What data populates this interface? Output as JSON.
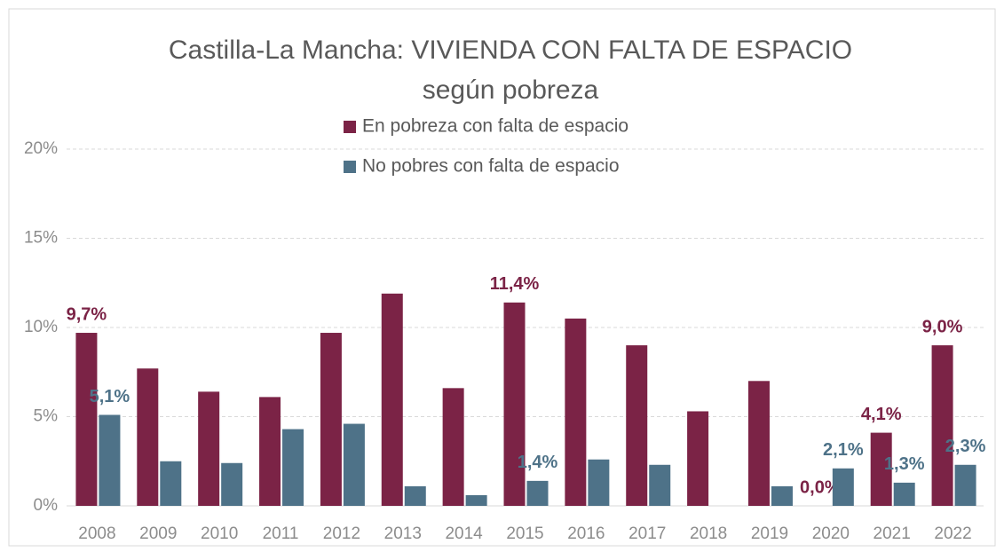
{
  "chart_data": {
    "type": "bar",
    "title": "Castilla-La Mancha: VIVIENDA CON FALTA DE ESPACIO",
    "subtitle": "según pobreza",
    "categories": [
      "2008",
      "2009",
      "2010",
      "2011",
      "2012",
      "2013",
      "2014",
      "2015",
      "2016",
      "2017",
      "2018",
      "2019",
      "2020",
      "2021",
      "2022"
    ],
    "series": [
      {
        "name": "En pobreza con falta de espacio",
        "color": "#7b2346",
        "values": [
          9.7,
          7.7,
          6.4,
          6.1,
          9.7,
          11.9,
          6.6,
          11.4,
          10.5,
          9.0,
          5.3,
          7.0,
          0.0,
          4.1,
          9.0
        ],
        "value_labels": [
          "9,7%",
          null,
          null,
          null,
          null,
          null,
          null,
          "11,4%",
          null,
          null,
          null,
          null,
          "0,0%",
          "4,1%",
          "9,0%"
        ]
      },
      {
        "name": "No pobres con falta de espacio",
        "color": "#4e7288",
        "values": [
          5.1,
          2.5,
          2.4,
          4.3,
          4.6,
          1.1,
          0.6,
          1.4,
          2.6,
          2.3,
          0,
          1.1,
          2.1,
          1.3,
          2.3
        ],
        "value_labels": [
          "5,1%",
          null,
          null,
          null,
          null,
          null,
          null,
          "1,4%",
          null,
          null,
          null,
          null,
          "2,1%",
          "1,3%",
          "2,3%"
        ]
      }
    ],
    "ylim": [
      0,
      20
    ],
    "yticks": [
      {
        "value": 0,
        "label": "0%"
      },
      {
        "value": 5,
        "label": "5%"
      },
      {
        "value": 10,
        "label": "10%"
      },
      {
        "value": 15,
        "label": "15%"
      },
      {
        "value": 20,
        "label": "20%"
      }
    ],
    "grid": true,
    "legend": "top"
  }
}
